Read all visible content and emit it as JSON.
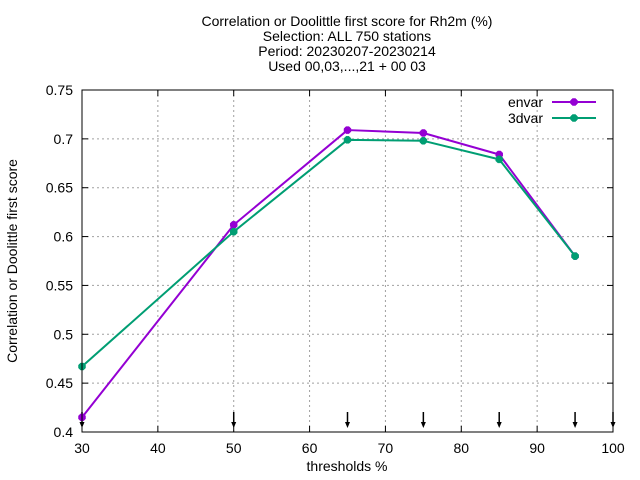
{
  "chart_data": {
    "type": "line",
    "title_lines": [
      "Correlation or Doolittle first score  for Rh2m (%)",
      "Selection: ALL    750 stations",
      "Period: 20230207-20230214",
      "Used 00,03,...,21 + 00 03"
    ],
    "xlabel": "thresholds %",
    "ylabel": "Correlation or Doolittle first score",
    "xlim": [
      30,
      100
    ],
    "ylim": [
      0.4,
      0.75
    ],
    "xticks": [
      30,
      40,
      50,
      60,
      70,
      80,
      90,
      100
    ],
    "yticks": [
      0.4,
      0.45,
      0.5,
      0.55,
      0.6,
      0.65,
      0.7,
      0.75
    ],
    "ytick_labels": [
      "0.4",
      "0.45",
      "0.5",
      "0.55",
      "0.6",
      "0.65",
      "0.7",
      "0.75"
    ],
    "grid": true,
    "legend_position": "top-right",
    "arrow_markers_x": [
      30,
      50,
      65,
      75,
      85,
      95,
      100
    ],
    "series": [
      {
        "name": "envar",
        "color": "#9400d3",
        "x": [
          30,
          50,
          65,
          75,
          85,
          95
        ],
        "values": [
          0.415,
          0.612,
          0.709,
          0.706,
          0.684,
          0.58
        ]
      },
      {
        "name": "3dvar",
        "color": "#009e73",
        "x": [
          30,
          50,
          65,
          75,
          85,
          95
        ],
        "values": [
          0.467,
          0.605,
          0.699,
          0.698,
          0.679,
          0.58
        ]
      }
    ]
  }
}
